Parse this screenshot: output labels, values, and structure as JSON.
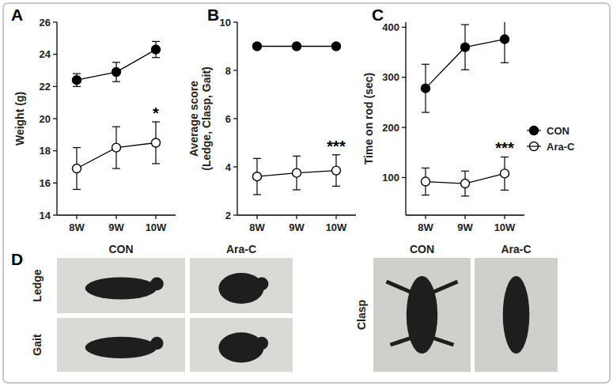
{
  "chart_data": [
    {
      "type": "line",
      "title": "A",
      "y_label": "Weight (g)",
      "categories": [
        "8W",
        "9W",
        "10W"
      ],
      "ylim": [
        14,
        26
      ],
      "yticks": [
        14,
        16,
        18,
        20,
        22,
        24,
        26
      ],
      "series": [
        {
          "name": "CON",
          "color": "#000000",
          "marker": "filled-circle",
          "values": [
            22.4,
            22.9,
            24.3
          ],
          "errors": [
            0.4,
            0.6,
            0.5
          ]
        },
        {
          "name": "Ara-C",
          "color": "#000000",
          "marker": "open-circle",
          "values": [
            16.9,
            18.2,
            18.5
          ],
          "errors": [
            1.3,
            1.3,
            1.3
          ]
        }
      ],
      "annotations": [
        {
          "text": "*",
          "category": "10W"
        }
      ]
    },
    {
      "type": "line",
      "title": "B",
      "y_label": [
        "Average score",
        "(Ledge, Clasp, Gait)"
      ],
      "categories": [
        "8W",
        "9W",
        "10W"
      ],
      "ylim": [
        2,
        10
      ],
      "yticks": [
        2,
        4,
        6,
        8,
        10
      ],
      "series": [
        {
          "name": "CON",
          "color": "#000000",
          "marker": "filled-circle",
          "values": [
            9,
            9,
            9
          ],
          "errors": [
            0,
            0,
            0
          ]
        },
        {
          "name": "Ara-C",
          "color": "#000000",
          "marker": "open-circle",
          "values": [
            3.6,
            3.75,
            3.85
          ],
          "errors": [
            0.75,
            0.7,
            0.65
          ]
        }
      ],
      "annotations": [
        {
          "text": "***",
          "category": "10W"
        }
      ]
    },
    {
      "type": "line",
      "title": "C",
      "y_label": "Time on rod (sec)",
      "categories": [
        "8W",
        "9W",
        "10W"
      ],
      "ylim": [
        25,
        410
      ],
      "yticks": [
        100,
        200,
        300,
        400
      ],
      "legend": "right",
      "series": [
        {
          "name": "CON",
          "color": "#000000",
          "marker": "filled-circle",
          "values": [
            278,
            360,
            376
          ],
          "errors": [
            48,
            45,
            47
          ]
        },
        {
          "name": "Ara-C",
          "color": "#000000",
          "marker": "open-circle",
          "values": [
            92,
            88,
            108
          ],
          "errors": [
            27,
            25,
            33
          ]
        }
      ],
      "annotations": [
        {
          "text": "***",
          "category": "10W"
        }
      ]
    }
  ],
  "panel_d": {
    "title": "D",
    "rows": [
      "Ledge",
      "Gait"
    ],
    "columns": [
      "CON",
      "Ara-C"
    ],
    "clasp": {
      "label": "Clasp",
      "columns": [
        "CON",
        "Ara-C"
      ]
    }
  }
}
